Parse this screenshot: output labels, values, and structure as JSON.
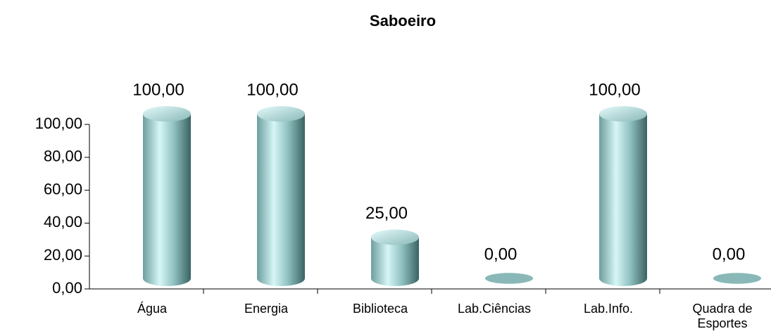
{
  "chart_data": {
    "type": "bar",
    "title": "Saboeiro",
    "categories": [
      "Água",
      "Energia",
      "Biblioteca",
      "Lab.Ciências",
      "Lab.Info.",
      "Quadra de Esportes"
    ],
    "values": [
      100,
      100,
      25,
      0,
      100,
      0
    ],
    "value_labels": [
      "100,00",
      "100,00",
      "25,00",
      "0,00",
      "100,00",
      "0,00"
    ],
    "color": "#9fd0d0",
    "ylim": [
      0,
      100
    ],
    "yticks": [
      {
        "value": 0,
        "label": "0,00"
      },
      {
        "value": 20,
        "label": "20,00"
      },
      {
        "value": 40,
        "label": "40,00"
      },
      {
        "value": 60,
        "label": "60,00"
      },
      {
        "value": 80,
        "label": "80,00"
      },
      {
        "value": 100,
        "label": "100,00"
      }
    ],
    "grid": false
  }
}
